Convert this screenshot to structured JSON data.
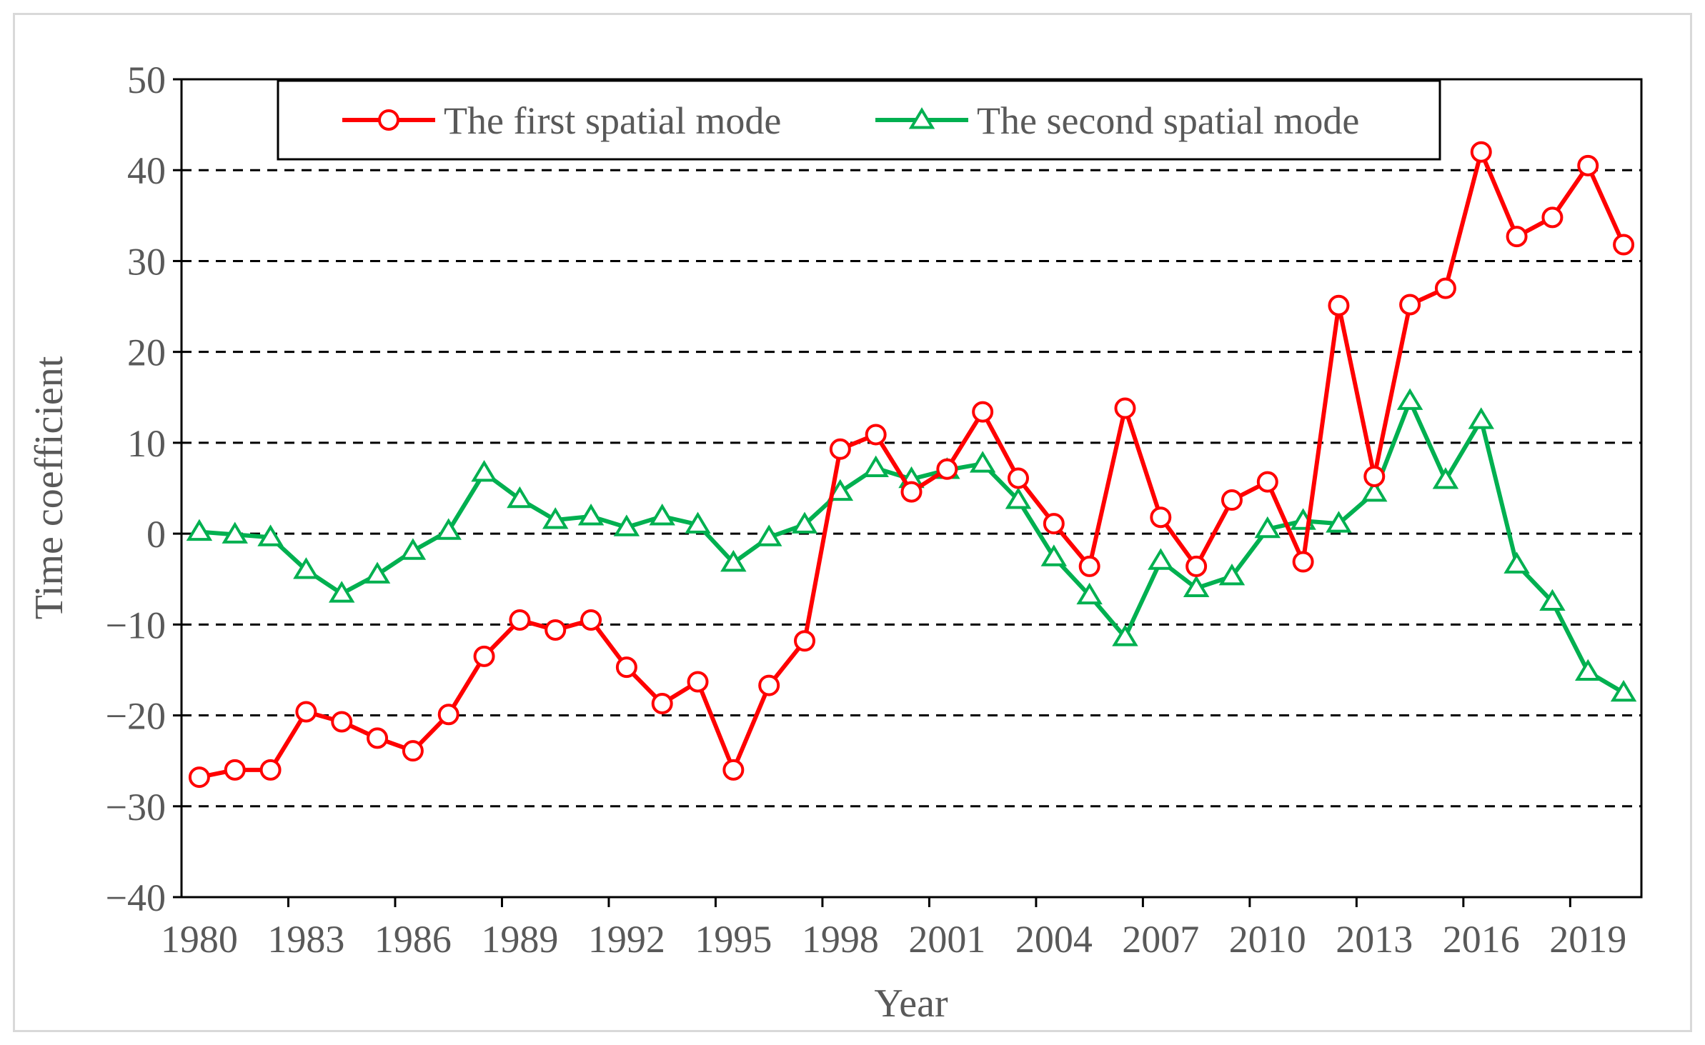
{
  "chart_data": {
    "type": "line",
    "title": "",
    "xlabel": "Year",
    "ylabel": "Time coefficient",
    "ylim": [
      -40,
      50
    ],
    "yticks": [
      -40,
      -30,
      -20,
      -10,
      0,
      10,
      20,
      30,
      40,
      50
    ],
    "ytick_labels": [
      "−40",
      "−30",
      "−20",
      "−10",
      "0",
      "10",
      "20",
      "30",
      "40",
      "50"
    ],
    "xlim": [
      1979.5,
      2020.5
    ],
    "xticks": [
      1980,
      1983,
      1986,
      1989,
      1992,
      1995,
      1998,
      2001,
      2004,
      2007,
      2010,
      2013,
      2016,
      2019
    ],
    "grid": "horizontal dashed",
    "legend_position": "top-center",
    "x": [
      1980,
      1981,
      1982,
      1983,
      1984,
      1985,
      1986,
      1987,
      1988,
      1989,
      1990,
      1991,
      1992,
      1993,
      1994,
      1995,
      1996,
      1997,
      1998,
      1999,
      2000,
      2001,
      2002,
      2003,
      2004,
      2005,
      2006,
      2007,
      2008,
      2009,
      2010,
      2011,
      2012,
      2013,
      2014,
      2015,
      2016,
      2017,
      2018,
      2019,
      2020
    ],
    "series": [
      {
        "name": "The first spatial mode",
        "color": "#ff0000",
        "marker": "circle",
        "values": [
          -26.8,
          -26,
          -26,
          -19.6,
          -20.7,
          -22.5,
          -23.9,
          -19.9,
          -13.5,
          -9.5,
          -10.6,
          -9.5,
          -14.7,
          -18.7,
          -16.3,
          -26,
          -16.7,
          -11.8,
          9.3,
          10.9,
          4.6,
          7.1,
          13.4,
          6.1,
          1.1,
          -3.6,
          13.8,
          1.8,
          -3.6,
          3.7,
          5.7,
          -3.1,
          25.1,
          6.3,
          25.2,
          27,
          42,
          32.7,
          34.8,
          40.5,
          31.8
        ]
      },
      {
        "name": "The second spatial mode",
        "color": "#00b050",
        "marker": "triangle",
        "values": [
          0.2,
          -0.1,
          -0.4,
          -4,
          -6.6,
          -4.5,
          -1.9,
          0.3,
          6.7,
          3.8,
          1.5,
          1.9,
          0.7,
          1.9,
          1,
          -3.2,
          -0.4,
          1,
          4.6,
          7.2,
          6,
          7,
          7.7,
          3.7,
          -2.6,
          -6.8,
          -11.4,
          -3,
          -6,
          -4.7,
          0.5,
          1.4,
          1.1,
          4.5,
          14.6,
          5.9,
          12.5,
          -3.4,
          -7.5,
          -15.2,
          -17.5
        ]
      }
    ]
  }
}
